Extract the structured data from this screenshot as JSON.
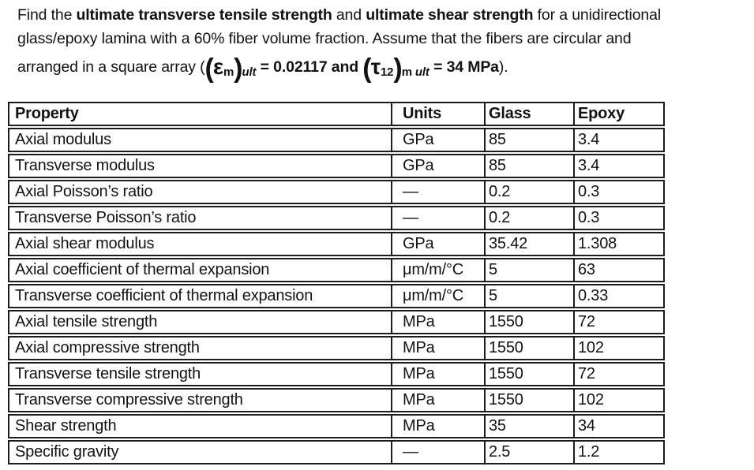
{
  "colors": {
    "text": "#121212",
    "table_border": "#1c1c1c",
    "background": "#ffffff"
  },
  "problem": {
    "lines": [
      {
        "name": "problem-line-1",
        "segments": [
          {
            "t": "Find the ",
            "c": "r"
          },
          {
            "t": "ultimate transverse tensile strength",
            "c": "b"
          },
          {
            "t": " and ",
            "c": "r"
          },
          {
            "t": "ultimate shear strength",
            "c": "b"
          },
          {
            "t": " for a unidirectional",
            "c": "r"
          }
        ]
      },
      {
        "name": "problem-line-2",
        "segments": [
          {
            "t": "glass/epoxy lamina with a 60% fiber volume fraction. Assume that the fibers are circular and",
            "c": "r"
          }
        ]
      },
      {
        "name": "problem-line-3",
        "segments": [
          {
            "t": "arranged in a square array (",
            "c": "r"
          },
          {
            "t": "(",
            "c": "bp"
          },
          {
            "t": "ε",
            "c": "g"
          },
          {
            "t": "m",
            "c": "sb"
          },
          {
            "t": ")",
            "c": "bp"
          },
          {
            "t": "ult",
            "c": "si"
          },
          {
            "t": " = 0.02117 and ",
            "c": "b"
          },
          {
            "t": "(",
            "c": "bp"
          },
          {
            "t": "τ",
            "c": "g"
          },
          {
            "t": "12",
            "c": "sb"
          },
          {
            "t": ")",
            "c": "bp"
          },
          {
            "t": "m ",
            "c": "sb"
          },
          {
            "t": "ult",
            "c": "si"
          },
          {
            "t": " = 34 MPa",
            "c": "b"
          },
          {
            "t": ").",
            "c": "r"
          }
        ]
      }
    ]
  },
  "table": {
    "columns": [
      "Property",
      "Units",
      "Glass",
      "Epoxy"
    ],
    "rows": [
      [
        "Axial modulus",
        "GPa",
        "85",
        "3.4"
      ],
      [
        "Transverse modulus",
        "GPa",
        "85",
        "3.4"
      ],
      [
        "Axial Poisson’s ratio",
        "—",
        "0.2",
        "0.3"
      ],
      [
        "Transverse Poisson’s ratio",
        "—",
        "0.2",
        "0.3"
      ],
      [
        "Axial shear modulus",
        "GPa",
        "35.42",
        "1.308"
      ],
      [
        "Axial coefficient of thermal expansion",
        "μm/m/°C",
        "5",
        "63"
      ],
      [
        "Transverse coefficient of thermal expansion",
        "μm/m/°C",
        "5",
        "0.33"
      ],
      [
        "Axial tensile strength",
        "MPa",
        "1550",
        "72"
      ],
      [
        "Axial compressive strength",
        "MPa",
        "1550",
        "102"
      ],
      [
        "Transverse tensile strength",
        "MPa",
        "1550",
        "72"
      ],
      [
        "Transverse compressive strength",
        "MPa",
        "1550",
        "102"
      ],
      [
        "Shear strength",
        "MPa",
        "35",
        "34"
      ],
      [
        "Specific gravity",
        "—",
        "2.5",
        "1.2"
      ]
    ]
  }
}
